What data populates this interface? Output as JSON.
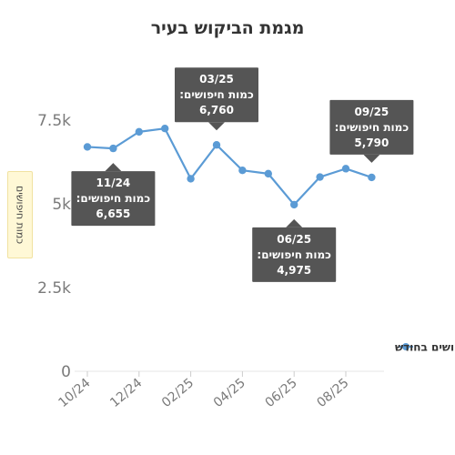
{
  "chart_data": {
    "type": "line",
    "title": "מגמת הביקוש בעיר",
    "ylabel": "כמות חיפושים",
    "xlabel": "",
    "ylim": [
      0,
      8000
    ],
    "y_ticks": [
      {
        "value": 0,
        "label": "0"
      },
      {
        "value": 2500,
        "label": "2.5k"
      },
      {
        "value": 5000,
        "label": "5k"
      },
      {
        "value": 7500,
        "label": "7.5k"
      }
    ],
    "x_ticks": [
      {
        "index": 0,
        "label": "10/24"
      },
      {
        "index": 2,
        "label": "12/24"
      },
      {
        "index": 4,
        "label": "02/25"
      },
      {
        "index": 6,
        "label": "04/25"
      },
      {
        "index": 8,
        "label": "06/25"
      },
      {
        "index": 10,
        "label": "08/25"
      }
    ],
    "x": [
      "10/24",
      "11/24",
      "12/24",
      "01/25",
      "02/25",
      "03/25",
      "04/25",
      "05/25",
      "06/25",
      "07/25",
      "08/25",
      "09/25"
    ],
    "series": [
      {
        "name": "חיפושים בחודש",
        "color": "#5b9bd5",
        "values": [
          6700,
          6655,
          7150,
          7250,
          5750,
          6760,
          6000,
          5900,
          4975,
          5800,
          6050,
          5790
        ]
      }
    ],
    "legend_position": "right",
    "grid": false,
    "annotations": [
      {
        "index": 1,
        "date": "11/24",
        "label": "כמות חיפושים:",
        "value": "6,655",
        "placement": "below"
      },
      {
        "index": 5,
        "date": "03/25",
        "label": "כמות חיפושים:",
        "value": "6,760",
        "placement": "above"
      },
      {
        "index": 8,
        "date": "06/25",
        "label": "כמות חיפושים:",
        "value": "4,975",
        "placement": "below"
      },
      {
        "index": 11,
        "date": "09/25",
        "label": "כמות חיפושים:",
        "value": "5,790",
        "placement": "above"
      }
    ]
  }
}
